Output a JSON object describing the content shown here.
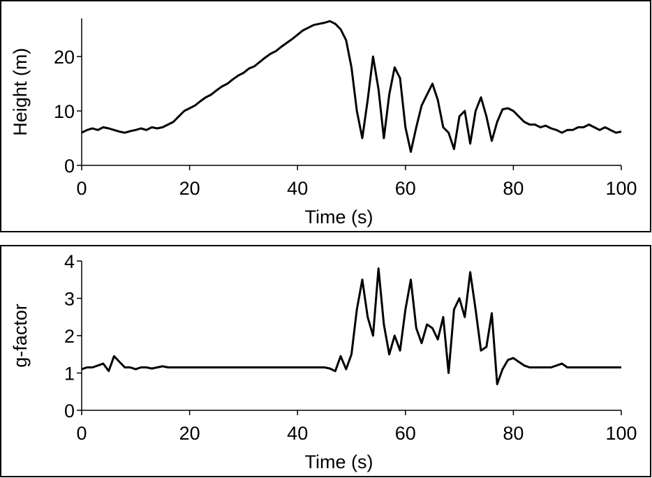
{
  "chart_data": [
    {
      "type": "line",
      "xlabel": "Time (s)",
      "ylabel": "Height (m)",
      "color": "#000000",
      "xlim": [
        0,
        100
      ],
      "xticks": [
        0,
        20,
        40,
        60,
        80,
        100
      ],
      "ylim": [
        0,
        27
      ],
      "yticks": [
        0,
        10,
        20
      ],
      "x": [
        0,
        1,
        2,
        3,
        4,
        5,
        6,
        7,
        8,
        9,
        10,
        11,
        12,
        13,
        14,
        15,
        16,
        17,
        18,
        19,
        20,
        21,
        22,
        23,
        24,
        25,
        26,
        27,
        28,
        29,
        30,
        31,
        32,
        33,
        34,
        35,
        36,
        37,
        38,
        39,
        40,
        41,
        42,
        43,
        44,
        45,
        46,
        47,
        48,
        49,
        50,
        51,
        52,
        53,
        54,
        55,
        56,
        57,
        58,
        59,
        60,
        61,
        62,
        63,
        64,
        65,
        66,
        67,
        68,
        69,
        70,
        71,
        72,
        73,
        74,
        75,
        76,
        77,
        78,
        79,
        80,
        81,
        82,
        83,
        84,
        85,
        86,
        87,
        88,
        89,
        90,
        91,
        92,
        93,
        94,
        95,
        96,
        97,
        98,
        99,
        100
      ],
      "values": [
        6,
        6.5,
        6.8,
        6.5,
        7,
        6.8,
        6.5,
        6.2,
        6,
        6.3,
        6.5,
        6.8,
        6.5,
        7,
        6.8,
        7,
        7.5,
        8,
        9,
        10,
        10.5,
        11,
        11.8,
        12.5,
        13,
        13.8,
        14.5,
        15,
        15.8,
        16.5,
        17,
        17.8,
        18.2,
        19,
        19.8,
        20.5,
        21,
        21.8,
        22.5,
        23.2,
        24,
        24.8,
        25.3,
        25.8,
        26,
        26.2,
        26.5,
        26,
        25,
        23,
        18,
        10,
        5,
        12,
        20,
        14,
        5,
        13,
        18,
        16,
        7,
        2.5,
        7,
        11,
        13,
        15,
        12,
        7,
        6,
        3,
        9,
        10,
        4,
        10,
        12.5,
        9,
        4.5,
        8,
        10.3,
        10.5,
        10,
        9,
        8,
        7.5,
        7.5,
        7,
        7.3,
        6.8,
        6.5,
        6,
        6.5,
        6.5,
        7,
        7,
        7.5,
        7,
        6.5,
        7,
        6.5,
        6,
        6.2
      ]
    },
    {
      "type": "line",
      "xlabel": "Time (s)",
      "ylabel": "g-factor",
      "color": "#000000",
      "xlim": [
        0,
        100
      ],
      "xticks": [
        0,
        20,
        40,
        60,
        80,
        100
      ],
      "ylim": [
        0,
        4
      ],
      "yticks": [
        0,
        1,
        2,
        3,
        4
      ],
      "x": [
        0,
        1,
        2,
        3,
        4,
        5,
        6,
        7,
        8,
        9,
        10,
        11,
        12,
        13,
        14,
        15,
        16,
        17,
        18,
        19,
        20,
        21,
        22,
        23,
        24,
        25,
        26,
        27,
        28,
        29,
        30,
        31,
        32,
        33,
        34,
        35,
        36,
        37,
        38,
        39,
        40,
        41,
        42,
        43,
        44,
        45,
        46,
        47,
        48,
        49,
        50,
        51,
        52,
        53,
        54,
        55,
        56,
        57,
        58,
        59,
        60,
        61,
        62,
        63,
        64,
        65,
        66,
        67,
        68,
        69,
        70,
        71,
        72,
        73,
        74,
        75,
        76,
        77,
        78,
        79,
        80,
        81,
        82,
        83,
        84,
        85,
        86,
        87,
        88,
        89,
        90,
        91,
        92,
        93,
        94,
        95,
        96,
        97,
        98,
        99,
        100
      ],
      "values": [
        1.1,
        1.15,
        1.15,
        1.2,
        1.25,
        1.05,
        1.45,
        1.3,
        1.15,
        1.15,
        1.1,
        1.15,
        1.15,
        1.12,
        1.15,
        1.18,
        1.15,
        1.15,
        1.15,
        1.15,
        1.15,
        1.15,
        1.15,
        1.15,
        1.15,
        1.15,
        1.15,
        1.15,
        1.15,
        1.15,
        1.15,
        1.15,
        1.15,
        1.15,
        1.15,
        1.15,
        1.15,
        1.15,
        1.15,
        1.15,
        1.15,
        1.15,
        1.15,
        1.15,
        1.15,
        1.15,
        1.12,
        1.05,
        1.45,
        1.1,
        1.5,
        2.7,
        3.5,
        2.5,
        2,
        3.8,
        2.3,
        1.5,
        2,
        1.6,
        2.7,
        3.5,
        2.2,
        1.8,
        2.3,
        2.2,
        1.9,
        2.5,
        1,
        2.7,
        3,
        2.5,
        3.7,
        2.7,
        1.6,
        1.7,
        2.6,
        0.7,
        1.1,
        1.35,
        1.4,
        1.3,
        1.2,
        1.15,
        1.15,
        1.15,
        1.15,
        1.15,
        1.2,
        1.25,
        1.15,
        1.15,
        1.15,
        1.15,
        1.15,
        1.15,
        1.15,
        1.15,
        1.15,
        1.15,
        1.15
      ]
    }
  ]
}
